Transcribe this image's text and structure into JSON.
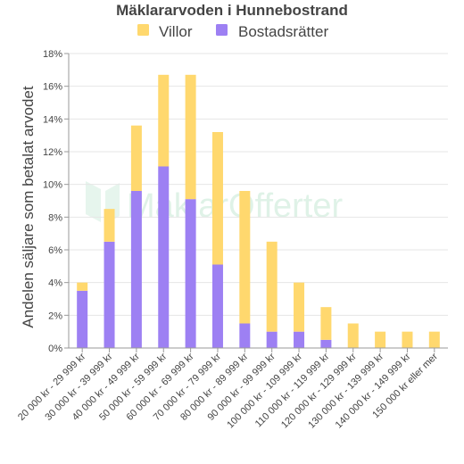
{
  "colors": {
    "Villor": "#ffd86e",
    "Bostadsratter": "#9d80f3",
    "grid": "#e6e6e6",
    "axis": "#999999"
  },
  "watermark": {
    "text": "MäklarOfferter"
  },
  "chart_data": {
    "type": "bar",
    "stacked": true,
    "title": "Mäklararvoden i Hunnebostrand",
    "ylabel": "Andelen säljare som betalat arvodet",
    "xlabel": "",
    "ylim": [
      0,
      18
    ],
    "yticks": [
      0,
      2,
      4,
      6,
      8,
      10,
      12,
      14,
      16,
      18
    ],
    "ytick_labels": [
      "0%",
      "2%",
      "4%",
      "6%",
      "8%",
      "10%",
      "12%",
      "14%",
      "16%",
      "18%"
    ],
    "legend_position": "top",
    "grid": true,
    "categories": [
      "20 000 kr - 29 999 kr",
      "30 000 kr - 39 999 kr",
      "40 000 kr - 49 999 kr",
      "50 000 kr - 59 999 kr",
      "60 000 kr - 69 999 kr",
      "70 000 kr - 79 999 kr",
      "80 000 kr - 89 999 kr",
      "90 000 kr - 99 999 kr",
      "100 000 kr - 109 999 kr",
      "110 000 kr - 119 999 kr",
      "120 000 kr - 129 999 kr",
      "130 000 kr - 139 999 kr",
      "140 000 kr - 149 999 kr",
      "150 000 kr eller mer"
    ],
    "series": [
      {
        "name": "Villor",
        "values": [
          0.5,
          2.0,
          4.0,
          5.6,
          7.6,
          8.1,
          8.1,
          5.5,
          3.0,
          2.0,
          1.5,
          1.0,
          1.0,
          1.0
        ]
      },
      {
        "name": "Bostadsrätter",
        "values": [
          3.5,
          6.5,
          9.6,
          11.1,
          9.1,
          5.1,
          1.5,
          1.0,
          1.0,
          0.5,
          0,
          0,
          0,
          0
        ]
      }
    ]
  }
}
